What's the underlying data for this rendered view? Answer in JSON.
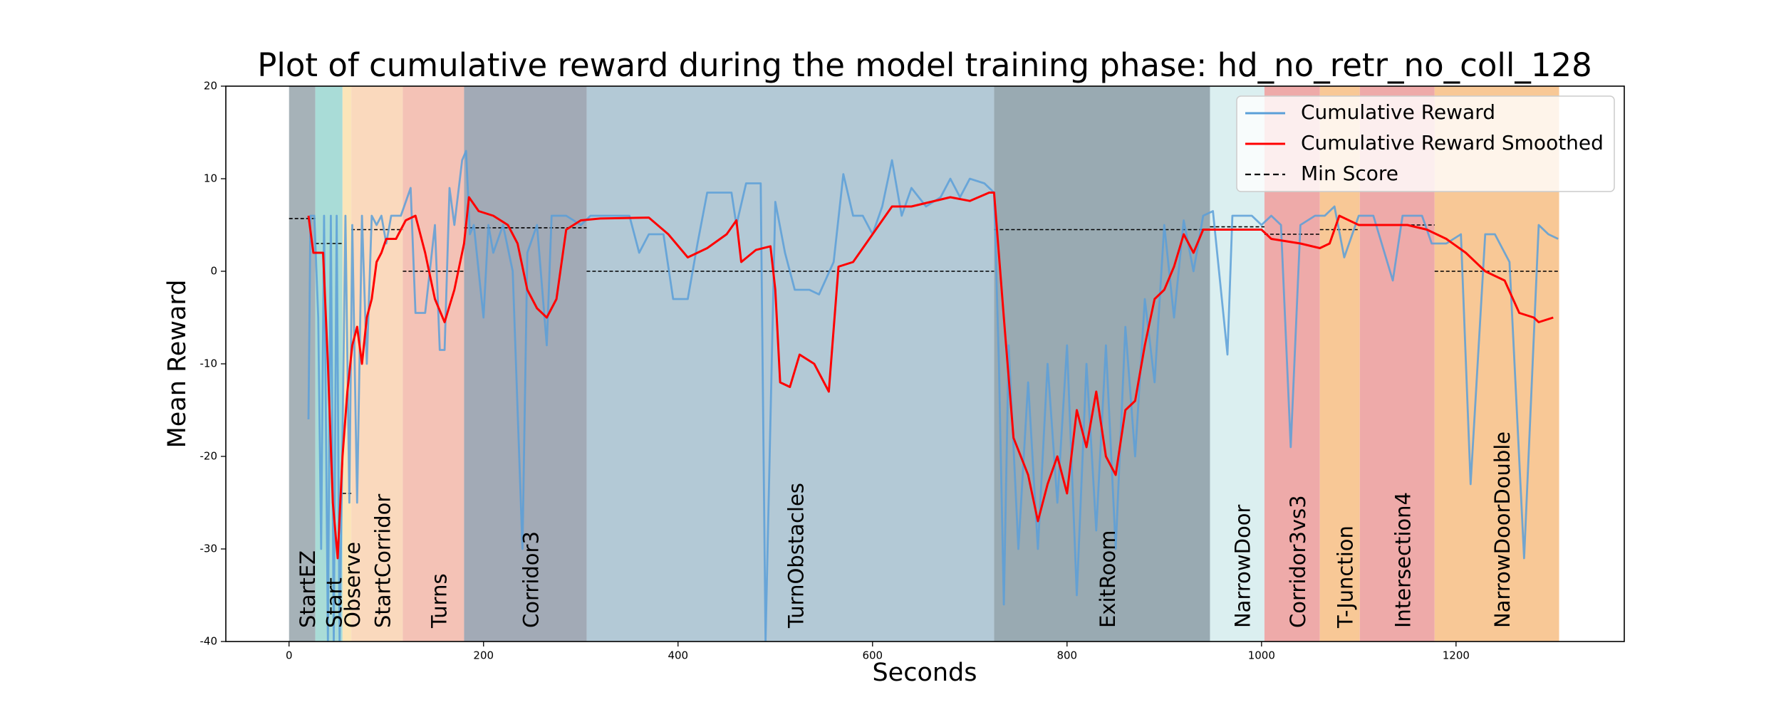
{
  "chart_data": {
    "type": "line",
    "title": "Plot of cumulative reward during the model training phase: hd_no_retr_no_coll_128",
    "xlabel": "Seconds",
    "ylabel": "Mean Reward",
    "xlim": [
      -65,
      1373
    ],
    "ylim": [
      -40,
      20
    ],
    "xticks": [
      0,
      200,
      400,
      600,
      800,
      1000,
      1200
    ],
    "yticks": [
      -40,
      -30,
      -20,
      -10,
      0,
      10,
      20
    ],
    "legend": "upper right",
    "min_score": {
      "name": "Min Score",
      "color": "#000000"
    },
    "regions": [
      {
        "name": "StartEZ",
        "start": 0,
        "end": 27,
        "color": "#a6b2b8",
        "min_score": 5.7
      },
      {
        "name": "Start",
        "start": 27,
        "end": 55,
        "color": "#a9dcd7",
        "min_score": 3
      },
      {
        "name": "Observe",
        "start": 55,
        "end": 64,
        "color": "#fbe5b9",
        "min_score": -24
      },
      {
        "name": "StartCorridor",
        "start": 64,
        "end": 117,
        "color": "#fad9bd",
        "min_score": 4.5
      },
      {
        "name": "Turns",
        "start": 117,
        "end": 180,
        "color": "#f4c2b6",
        "min_score": 0
      },
      {
        "name": "Corridor3",
        "start": 180,
        "end": 306,
        "color": "#a2aab6",
        "min_score": 4.7
      },
      {
        "name": "TurnObstacles",
        "start": 306,
        "end": 725,
        "color": "#b3c9d6",
        "min_score": 0
      },
      {
        "name": "ExitRoom",
        "start": 725,
        "end": 947,
        "color": "#99aab2",
        "min_score": 4.5
      },
      {
        "name": "NarrowDoor",
        "start": 947,
        "end": 1003,
        "color": "#dbeff0",
        "min_score": 4.8
      },
      {
        "name": "Corridor3vs3",
        "start": 1003,
        "end": 1060,
        "color": "#eeaaa9",
        "min_score": 4
      },
      {
        "name": "T-Junction",
        "start": 1060,
        "end": 1101,
        "color": "#f8c896",
        "min_score": 4.5
      },
      {
        "name": "Intersection4",
        "start": 1101,
        "end": 1178,
        "color": "#eeaaa9",
        "min_score": 5
      },
      {
        "name": "NarrowDoorDouble",
        "start": 1178,
        "end": 1306,
        "color": "#f8c896",
        "min_score": 0
      }
    ],
    "series": [
      {
        "name": "Cumulative Reward",
        "color": "#5a9fd8",
        "x": [
          20,
          22,
          26,
          30,
          33,
          36,
          40,
          43,
          46,
          49,
          52,
          55,
          58,
          62,
          65,
          70,
          75,
          80,
          85,
          90,
          95,
          100,
          105,
          115,
          125,
          130,
          140,
          150,
          155,
          160,
          165,
          170,
          178,
          182,
          186,
          190,
          200,
          205,
          210,
          220,
          230,
          240,
          245,
          255,
          265,
          270,
          285,
          300,
          310,
          350,
          360,
          370,
          385,
          395,
          410,
          420,
          430,
          455,
          460,
          470,
          485,
          490,
          500,
          510,
          520,
          535,
          545,
          560,
          570,
          580,
          590,
          600,
          610,
          620,
          630,
          640,
          655,
          670,
          680,
          690,
          700,
          715,
          725,
          730,
          735,
          740,
          750,
          760,
          770,
          780,
          790,
          800,
          810,
          820,
          830,
          840,
          850,
          860,
          870,
          880,
          890,
          900,
          910,
          920,
          930,
          940,
          950,
          965,
          970,
          990,
          1000,
          1010,
          1020,
          1030,
          1040,
          1055,
          1065,
          1075,
          1085,
          1100,
          1115,
          1135,
          1145,
          1165,
          1175,
          1190,
          1205,
          1215,
          1230,
          1240,
          1255,
          1270,
          1285,
          1295,
          1305
        ],
        "values": [
          -16,
          6,
          6,
          -5,
          -30,
          6,
          -40,
          6,
          -40,
          6,
          -40,
          -18,
          6,
          -25,
          5,
          -25,
          6,
          -10,
          6,
          5,
          6,
          3,
          6,
          6,
          9,
          -4.5,
          -4.5,
          5,
          -8.5,
          -8.5,
          9,
          5,
          12,
          13,
          4,
          5,
          -5,
          5,
          2,
          5,
          0,
          -30,
          2,
          5,
          -8,
          6,
          6,
          5,
          6,
          6,
          2,
          4,
          4,
          -3,
          -3,
          3,
          8.5,
          8.5,
          5,
          9.5,
          9.5,
          -40,
          7.5,
          2,
          -2,
          -2,
          -2.5,
          1,
          10.5,
          6,
          6,
          4,
          7,
          12,
          6,
          9,
          7,
          8,
          10,
          8,
          10,
          9.5,
          8.5,
          -10,
          -36,
          -8,
          -30,
          -12,
          -30,
          -10,
          -25,
          -8,
          -35,
          -10,
          -28,
          -8,
          -30,
          -6,
          -20,
          -3,
          -12,
          5,
          -5,
          5.5,
          0,
          6,
          6.5,
          -9,
          6,
          6,
          5,
          6,
          5,
          -19,
          5,
          6,
          6,
          7,
          1.5,
          6,
          6,
          -1,
          6,
          6,
          3,
          3,
          4,
          -23,
          4,
          4,
          1,
          -31,
          5,
          4,
          3.5
        ]
      },
      {
        "name": "Cumulative Reward Smoothed",
        "color": "#ff0000",
        "x": [
          20,
          25,
          35,
          40,
          45,
          50,
          55,
          60,
          65,
          70,
          75,
          80,
          85,
          90,
          95,
          100,
          110,
          120,
          130,
          140,
          150,
          160,
          170,
          180,
          185,
          195,
          210,
          225,
          235,
          245,
          255,
          265,
          275,
          285,
          300,
          320,
          370,
          390,
          410,
          430,
          450,
          460,
          465,
          480,
          495,
          500,
          505,
          515,
          525,
          540,
          555,
          565,
          580,
          600,
          620,
          640,
          660,
          680,
          700,
          720,
          725,
          735,
          745,
          760,
          770,
          780,
          790,
          800,
          810,
          820,
          830,
          840,
          850,
          860,
          870,
          880,
          890,
          900,
          910,
          920,
          930,
          940,
          950,
          960,
          990,
          1000,
          1010,
          1040,
          1060,
          1070,
          1080,
          1100,
          1130,
          1150,
          1170,
          1190,
          1210,
          1230,
          1250,
          1265,
          1280,
          1285,
          1300
        ],
        "values": [
          6,
          2,
          2,
          -10,
          -25,
          -31,
          -20,
          -13,
          -8,
          -6,
          -10,
          -5,
          -3,
          1,
          2,
          3.5,
          3.5,
          5.5,
          6,
          2,
          -3,
          -5.5,
          -2,
          3,
          8,
          6.5,
          6,
          5,
          3,
          -2,
          -4,
          -5,
          -3,
          4.5,
          5.5,
          5.7,
          5.8,
          4,
          1.5,
          2.5,
          4,
          5.5,
          1,
          2.3,
          2.7,
          -2,
          -12,
          -12.5,
          -9,
          -10,
          -13,
          0.5,
          1,
          4,
          7,
          7,
          7.5,
          8,
          7.6,
          8.5,
          8.5,
          -5,
          -18,
          -22,
          -27,
          -23,
          -20,
          -24,
          -15,
          -19,
          -13,
          -20,
          -22,
          -15,
          -14,
          -8,
          -3,
          -2,
          0.5,
          4,
          2,
          4.5,
          4.5,
          4.5,
          4.5,
          4.5,
          3.5,
          3,
          2.5,
          3,
          6,
          5,
          5,
          5,
          4.5,
          3.5,
          2,
          0,
          -1,
          -4.5,
          -5,
          -5.5,
          -5
        ]
      }
    ]
  }
}
